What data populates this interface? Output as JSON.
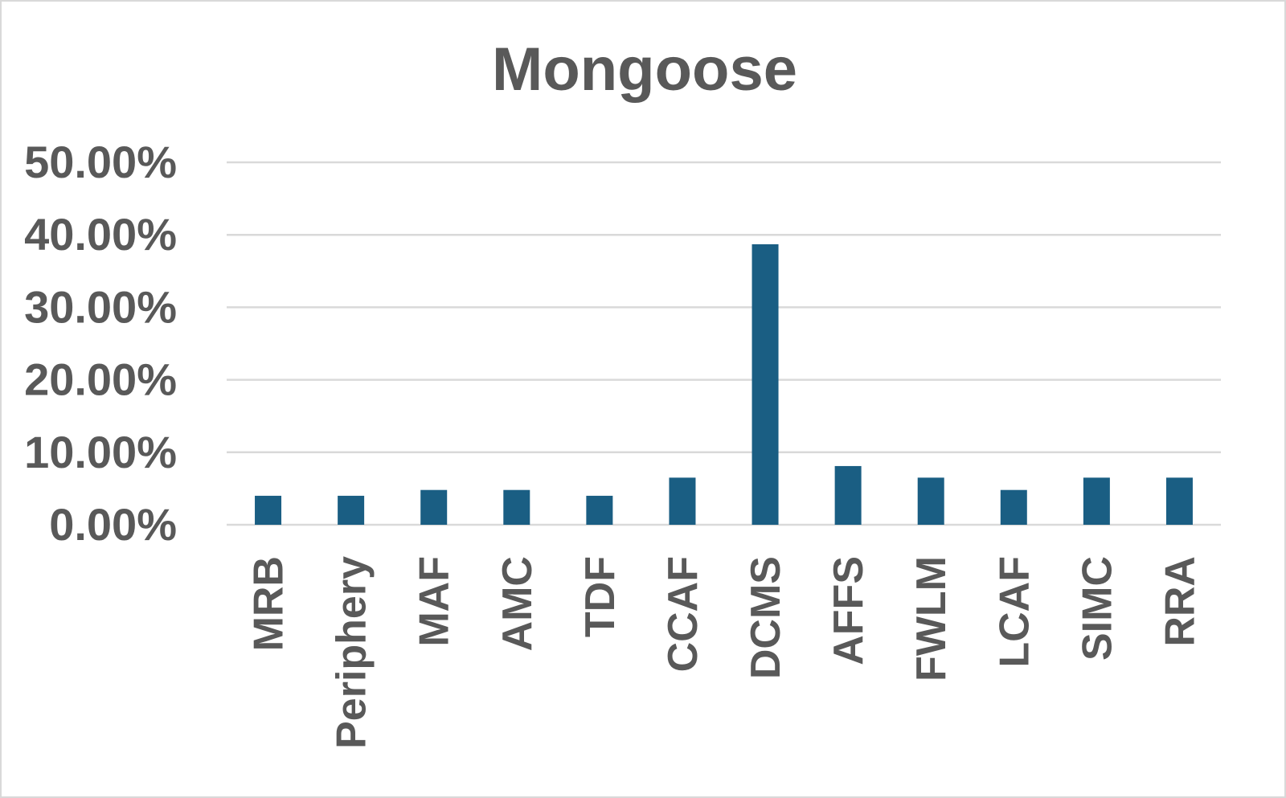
{
  "chart_data": {
    "type": "bar",
    "title": "Mongoose",
    "xlabel": "",
    "ylabel": "",
    "categories": [
      "MRB",
      "Periphery",
      "MAF",
      "AMC",
      "TDF",
      "CCAF",
      "DCMS",
      "AFFS",
      "FWLM",
      "LCAF",
      "SIMC",
      "RRA"
    ],
    "values": [
      0.04,
      0.04,
      0.048,
      0.048,
      0.04,
      0.065,
      0.387,
      0.081,
      0.065,
      0.048,
      0.065,
      0.065
    ],
    "ylim": [
      0,
      0.5
    ],
    "yticks": [
      0,
      0.1,
      0.2,
      0.3,
      0.4,
      0.5
    ],
    "ytick_labels": [
      "0.00%",
      "10.00%",
      "20.00%",
      "30.00%",
      "40.00%",
      "50.00%"
    ],
    "grid": true,
    "legend": "none",
    "bar_color": "#1a5e83"
  }
}
